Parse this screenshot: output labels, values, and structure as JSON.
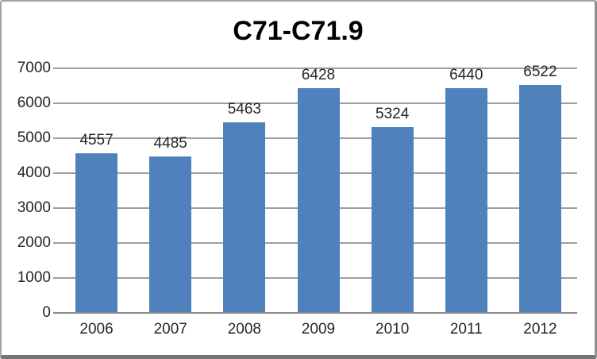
{
  "chart_data": {
    "type": "bar",
    "title": "C71-C71.9",
    "categories": [
      "2006",
      "2007",
      "2008",
      "2009",
      "2010",
      "2011",
      "2012"
    ],
    "values": [
      4557,
      4485,
      5463,
      6428,
      5324,
      6440,
      6522
    ],
    "show_data_labels": true,
    "xlabel": "",
    "ylabel": "",
    "ylim": [
      0,
      7000
    ],
    "ytick_step": 1000,
    "yticks": [
      0,
      1000,
      2000,
      3000,
      4000,
      5000,
      6000,
      7000
    ],
    "grid": true,
    "legend": "none",
    "colors": {
      "bar": "#4F81BD",
      "gridline": "#9E9E9E",
      "axis_line": "#8A8A8A",
      "label_text": "#262626",
      "title_text": "#000000",
      "background": "#FFFFFF",
      "frame_border": "#A3A3A3"
    }
  }
}
